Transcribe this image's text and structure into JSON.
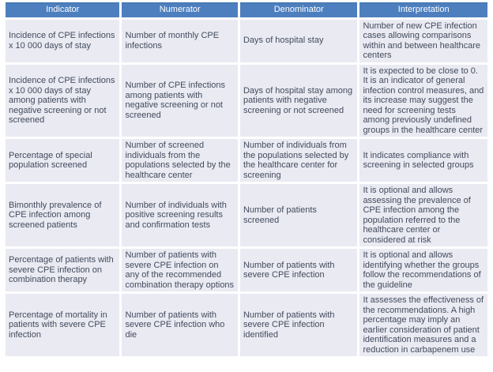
{
  "colors": {
    "header_bg": "#4d7fbe",
    "header_text": "#ffffff",
    "cell_bg": "#e9eaf2",
    "body_text": "#434b5c",
    "gridline": "#ffffff"
  },
  "table": {
    "columns": [
      "Indicator",
      "Numerator",
      "Denominator",
      "Interpretation"
    ],
    "rows": [
      {
        "cells": [
          "Incidence of CPE infections x 10 000 days of stay",
          "Number of monthly CPE infections",
          "Days of hospital stay",
          "Number of new CPE infection cases allowing comparisons within and between healthcare centers"
        ]
      },
      {
        "cells": [
          "Incidence of CPE infections x 10 000 days of stay among patients with negative screening or not screened",
          "Number of CPE infections among patients with negative screening or not screened",
          "Days of hospital stay among patients with negative screening or not screened",
          "It is expected to be close to 0. It is an indicator of general infection control measures, and its increase may suggest the need for screening tests among previously undefined groups in the healthcare center"
        ]
      },
      {
        "cells": [
          "Percentage of special population screened",
          "Number of screened individuals from the populations selected by the healthcare center",
          "Number of individuals from the populations selected by the healthcare center for screening",
          "It indicates compliance with screening in selected groups"
        ]
      },
      {
        "cells": [
          "Bimonthly prevalence of CPE infection among screened patients",
          "Number of individuals with positive screening results and confirmation tests",
          "Number of patients screened",
          "It is optional and allows assessing the prevalence of CPE infection among the population referred to the healthcare center or considered at risk"
        ]
      },
      {
        "cells": [
          "Percentage of patients with severe CPE infection on combination therapy",
          "Number of patients with severe CPE infection on any of the recommended combination therapy options",
          "Number of patients with severe CPE infection",
          "It is optional and allows identifying whether the groups follow the recommendations of the guideline"
        ]
      },
      {
        "cells": [
          "Percentage of mortality in patients with severe CPE infection",
          "Number of patients with severe CPE infection who die",
          "Number of patients with severe CPE infection identified",
          "It assesses the effectiveness of the recommendations. A high percentage may imply an earlier consideration of patient identification measures and a reduction in carbapenem use"
        ]
      }
    ]
  }
}
